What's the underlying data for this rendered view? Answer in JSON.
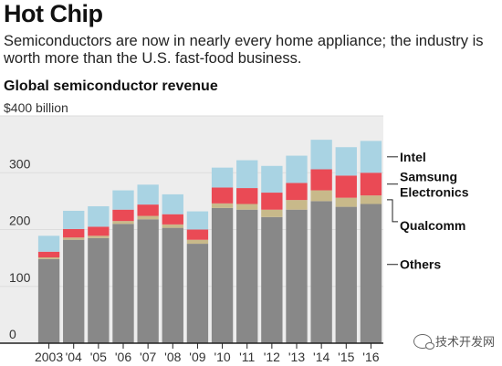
{
  "header": {
    "title": "Hot Chip",
    "subtitle": "Semiconductors are now in nearly every home appliance; the industry is worth more than the U.S. fast-food business."
  },
  "chart_title": "Global semiconductor revenue",
  "watermark": "技术开发网",
  "colors": {
    "Others": "#888888",
    "Qualcomm": "#c8b98a",
    "Samsung Electronics": "#ea4a55",
    "Intel": "#a9d3e3",
    "axis": "#222222",
    "grid": "#dddddd",
    "plot_bg": "#ededed"
  },
  "chart_data": {
    "type": "bar",
    "stacked": true,
    "y_unit_label": "$400 billion",
    "ylim": [
      0,
      400
    ],
    "ytick_values": [
      0,
      100,
      200,
      300
    ],
    "yticks": [
      "0",
      "100",
      "200",
      "300"
    ],
    "categories": [
      "2003",
      "'04",
      "'05",
      "'06",
      "'07",
      "'08",
      "'09",
      "'10",
      "'11",
      "'12",
      "'13",
      "'14",
      "'15",
      "'16"
    ],
    "series": [
      {
        "name": "Others",
        "values": [
          148,
          182,
          185,
          210,
          218,
          203,
          175,
          238,
          235,
          222,
          235,
          250,
          240,
          245
        ]
      },
      {
        "name": "Qualcomm",
        "values": [
          3,
          4,
          4,
          5,
          6,
          6,
          7,
          8,
          10,
          13,
          17,
          19,
          16,
          15
        ]
      },
      {
        "name": "Samsung Electronics",
        "values": [
          10,
          15,
          16,
          20,
          20,
          18,
          18,
          28,
          28,
          30,
          30,
          37,
          39,
          40
        ]
      },
      {
        "name": "Intel",
        "values": [
          28,
          32,
          36,
          34,
          35,
          35,
          32,
          35,
          49,
          47,
          48,
          52,
          50,
          56
        ]
      }
    ],
    "legend": [
      "Intel",
      "Samsung Electronics",
      "Qualcomm",
      "Others"
    ],
    "legend_lines": [
      [
        "Intel"
      ],
      [
        "Samsung",
        "Electronics"
      ],
      [
        "Qualcomm"
      ],
      [
        "Others"
      ]
    ],
    "legend_placement": "right",
    "grid": true
  }
}
